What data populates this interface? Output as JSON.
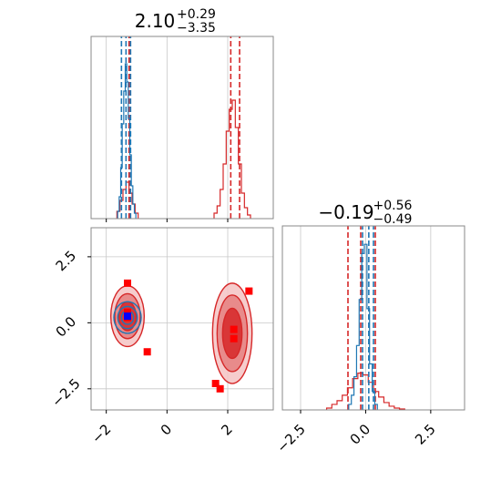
{
  "chart_data": {
    "type": "corner",
    "grid": true,
    "params": [
      "x",
      "y"
    ],
    "panels": [
      {
        "id": "hist_x",
        "type": "histogram",
        "title": {
          "value": "2.10",
          "sup": "+0.29",
          "sub": "−3.35"
        },
        "xlim": [
          -2.5,
          3.5
        ],
        "ylim": [
          0,
          1.0
        ],
        "xticks": [
          -2,
          0,
          2
        ],
        "series": [
          {
            "name": "red",
            "color": "#d62728",
            "bins": [
              -1.6,
              -1.5,
              -1.4,
              -1.3,
              -1.2,
              -1.1,
              -1.0,
              1.6,
              1.7,
              1.8,
              1.9,
              2.0,
              2.1,
              2.2,
              2.3,
              2.4,
              2.5,
              2.6,
              2.7
            ],
            "counts": [
              0.04,
              0.1,
              0.16,
              0.2,
              0.14,
              0.08,
              0.03,
              0.03,
              0.07,
              0.16,
              0.3,
              0.48,
              0.6,
              0.65,
              0.5,
              0.3,
              0.14,
              0.06,
              0.02
            ],
            "quantiles": [
              -1.25,
              2.1,
              2.39
            ]
          },
          {
            "name": "blue",
            "color": "#1f77b4",
            "bins": [
              -1.6,
              -1.55,
              -1.5,
              -1.45,
              -1.4,
              -1.35,
              -1.3,
              -1.25,
              -1.2,
              -1.15,
              -1.1,
              -1.05
            ],
            "counts": [
              0.04,
              0.12,
              0.28,
              0.52,
              0.7,
              0.85,
              0.75,
              0.55,
              0.35,
              0.18,
              0.08,
              0.03
            ],
            "quantiles": [
              -1.5,
              -1.35,
              -1.2
            ]
          }
        ]
      },
      {
        "id": "hist_y",
        "type": "histogram",
        "title": {
          "value": "−0.19",
          "sup": "+0.56",
          "sub": "−0.49"
        },
        "xlim": [
          -3.2,
          3.8
        ],
        "ylim": [
          0,
          1.0
        ],
        "xticks": [
          -2.5,
          0.0,
          2.5
        ],
        "xticklabels": [
          "−2.5",
          "0.0",
          "2.5"
        ],
        "series": [
          {
            "name": "red",
            "color": "#d62728",
            "bins": [
              -1.4,
              -1.2,
              -1.0,
              -0.8,
              -0.6,
              -0.4,
              -0.2,
              0.0,
              0.2,
              0.4,
              0.6,
              0.8,
              1.0,
              1.2,
              1.4
            ],
            "counts": [
              0.01,
              0.03,
              0.05,
              0.08,
              0.12,
              0.17,
              0.2,
              0.19,
              0.15,
              0.1,
              0.07,
              0.04,
              0.02,
              0.01,
              0.005
            ],
            "quantiles": [
              -0.68,
              -0.19,
              0.37
            ]
          },
          {
            "name": "blue",
            "color": "#1f77b4",
            "bins": [
              -0.6,
              -0.5,
              -0.4,
              -0.3,
              -0.2,
              -0.1,
              0.0,
              0.1,
              0.2,
              0.3,
              0.4
            ],
            "counts": [
              0.03,
              0.08,
              0.18,
              0.35,
              0.6,
              0.85,
              0.9,
              0.55,
              0.25,
              0.1,
              0.03
            ],
            "quantiles": [
              -0.12,
              0.12,
              0.3
            ]
          }
        ]
      },
      {
        "id": "scatter_xy",
        "type": "contour_scatter",
        "xlim": [
          -2.5,
          3.5
        ],
        "ylim": [
          -3.3,
          3.6
        ],
        "xticks": [
          -2,
          0,
          2
        ],
        "yticks": [
          -2.5,
          0.0,
          2.5
        ],
        "yticklabels": [
          "−2.5",
          "0.0",
          "2.5"
        ],
        "red_squares": [
          [
            -1.3,
            1.5
          ],
          [
            -1.3,
            0.4
          ],
          [
            -1.3,
            0.2
          ],
          [
            -0.65,
            -1.1
          ],
          [
            1.6,
            -2.3
          ],
          [
            1.75,
            -2.5
          ],
          [
            2.2,
            -0.25
          ],
          [
            2.2,
            -0.6
          ],
          [
            2.7,
            1.2
          ]
        ],
        "blue_squares": [
          [
            -1.3,
            0.25
          ]
        ],
        "contours": [
          {
            "color": "#d62728",
            "cx": -1.3,
            "cy": 0.25,
            "rx": [
              0.55,
              0.42,
              0.28
            ],
            "ry": [
              1.15,
              0.85,
              0.55
            ]
          },
          {
            "color": "#d62728",
            "cx": 2.15,
            "cy": -0.4,
            "rx": [
              0.65,
              0.5,
              0.32
            ],
            "ry": [
              1.9,
              1.45,
              0.95
            ]
          },
          {
            "color": "#1f77b4",
            "cx": -1.3,
            "cy": 0.2,
            "rx": [
              0.45,
              0.32,
              0.2
            ],
            "ry": [
              0.6,
              0.42,
              0.26
            ]
          }
        ]
      }
    ]
  }
}
